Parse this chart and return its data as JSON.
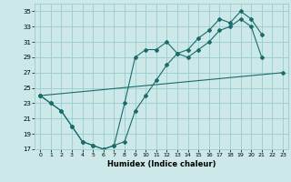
{
  "xlabel": "Humidex (Indice chaleur)",
  "bg_color": "#cce8e8",
  "grid_color": "#99cccc",
  "line_color": "#1a6b6b",
  "line1_x": [
    0,
    1,
    2,
    3,
    4,
    5,
    6,
    7,
    8,
    9,
    10,
    11,
    12,
    13,
    14,
    15,
    16,
    17,
    18,
    19,
    20,
    21
  ],
  "line1_y": [
    24,
    23,
    22,
    20,
    18,
    17.5,
    17,
    17.5,
    23,
    29,
    30,
    30,
    31,
    29.5,
    30,
    31.5,
    32.5,
    34,
    33.5,
    35,
    34,
    32
  ],
  "line2_x": [
    0,
    1,
    2,
    3,
    4,
    5,
    6,
    7,
    8,
    9,
    10,
    11,
    12,
    13,
    14,
    15,
    16,
    17,
    18,
    19,
    20,
    21
  ],
  "line2_y": [
    24,
    23,
    22,
    20,
    18,
    17.5,
    17,
    17.5,
    18,
    22,
    24,
    26,
    28,
    29.5,
    29,
    30,
    31,
    32.5,
    33,
    34,
    33,
    29
  ],
  "line3_x": [
    0,
    23
  ],
  "line3_y": [
    24,
    27
  ],
  "xlim": [
    -0.5,
    23.5
  ],
  "ylim": [
    17,
    36
  ],
  "yticks": [
    17,
    19,
    21,
    23,
    25,
    27,
    29,
    31,
    33,
    35
  ],
  "xticks": [
    0,
    1,
    2,
    3,
    4,
    5,
    6,
    7,
    8,
    9,
    10,
    11,
    12,
    13,
    14,
    15,
    16,
    17,
    18,
    19,
    20,
    21,
    22,
    23
  ]
}
